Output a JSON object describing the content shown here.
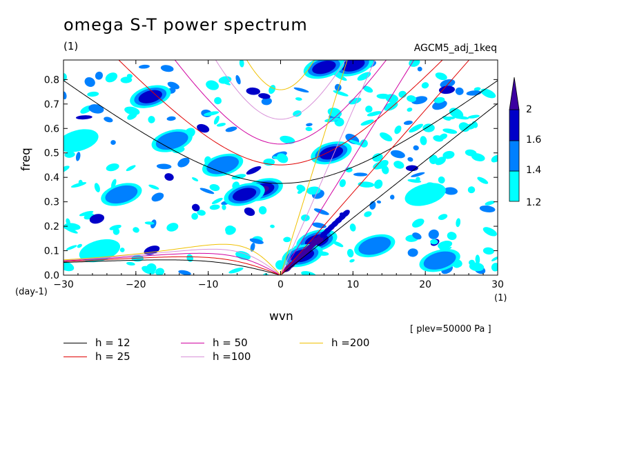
{
  "header": {
    "title": "omega S-T power spectrum",
    "units": "(1)",
    "dataset": "AGCM5_adj_1keq",
    "plev": "[ plev=50000 Pa ]"
  },
  "axes": {
    "xlabel": "wvn",
    "xunit": "(1)",
    "ylabel": "freq",
    "yunit": "(day-1)"
  },
  "chart_data": {
    "type": "heatmap",
    "xlim": [
      -30,
      30
    ],
    "ylim": [
      0,
      0.88
    ],
    "xticks": [
      "-30",
      "-20",
      "-10",
      "0",
      "10",
      "20",
      "30"
    ],
    "yticks": [
      "0.0",
      "0.1",
      "0.2",
      "0.3",
      "0.4",
      "0.5",
      "0.6",
      "0.7",
      "0.8"
    ],
    "colorbar": {
      "levels": [
        "1.2",
        "1.4",
        "1.6",
        "2"
      ],
      "colors": [
        "#00ffff",
        "#0080ff",
        "#0000c8",
        "#3c00a0"
      ]
    },
    "dispersion_curves": [
      {
        "h": 12,
        "label": "h = 12",
        "color": "#000000"
      },
      {
        "h": 25,
        "label": "h = 25",
        "color": "#e00000"
      },
      {
        "h": 50,
        "label": "h = 50",
        "color": "#d000a0"
      },
      {
        "h": 100,
        "label": "h =100",
        "color": "#d890d8"
      },
      {
        "h": 200,
        "label": "h =200",
        "color": "#f0c000"
      }
    ],
    "power_peaks": [
      {
        "x": -2.5,
        "y": 0.35,
        "level": 2
      },
      {
        "x": -5,
        "y": 0.33,
        "level": 1.6
      },
      {
        "x": 5,
        "y": 0.14,
        "level": 2
      },
      {
        "x": 3,
        "y": 0.08,
        "level": 1.6
      },
      {
        "x": 7,
        "y": 0.5,
        "level": 1.6
      },
      {
        "x": 10,
        "y": 0.86,
        "level": 1.6
      },
      {
        "x": 6,
        "y": 0.85,
        "level": 1.6
      },
      {
        "x": -18,
        "y": 0.73,
        "level": 1.6
      },
      {
        "x": -15,
        "y": 0.55,
        "level": 1.4
      },
      {
        "x": -8,
        "y": 0.45,
        "level": 1.4
      },
      {
        "x": -22,
        "y": 0.33,
        "level": 1.4
      },
      {
        "x": 22,
        "y": 0.06,
        "level": 1.4
      },
      {
        "x": 13,
        "y": 0.12,
        "level": 1.4
      },
      {
        "x": -25,
        "y": 0.1,
        "level": 1.2
      },
      {
        "x": 20,
        "y": 0.33,
        "level": 1.2
      },
      {
        "x": -28,
        "y": 0.55,
        "level": 1.2
      }
    ]
  }
}
